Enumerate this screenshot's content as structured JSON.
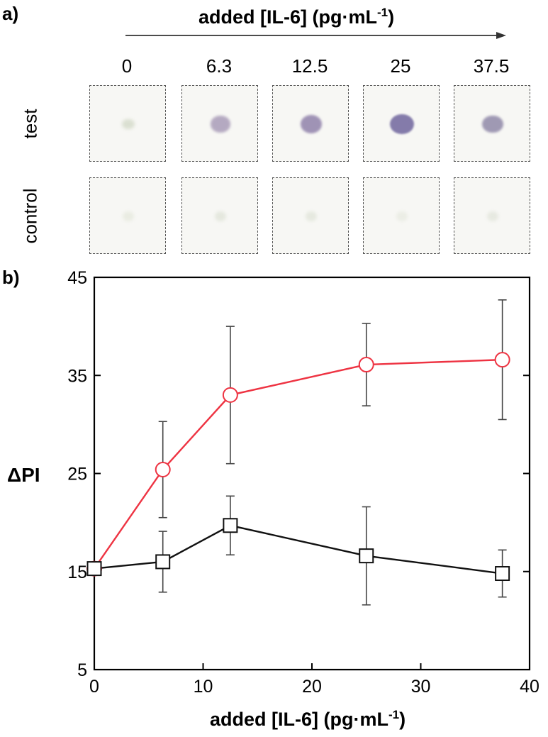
{
  "panel_a": {
    "label": "a)",
    "header": "added [IL-6] (pg·mL",
    "header_sup": "-1",
    "header_close": ")",
    "concentrations": [
      "0",
      "6.3",
      "12.5",
      "25",
      "37.5"
    ],
    "rows": [
      {
        "label": "test",
        "spots": [
          {
            "intensity": 0.15,
            "color": "#b9c4a8"
          },
          {
            "intensity": 0.6,
            "color": "#9e8fb0"
          },
          {
            "intensity": 0.75,
            "color": "#8f80aa"
          },
          {
            "intensity": 0.9,
            "color": "#7d74a6"
          },
          {
            "intensity": 0.7,
            "color": "#8a82a4"
          }
        ]
      },
      {
        "label": "control",
        "spots": [
          {
            "intensity": 0.08,
            "color": "#d6dcc8"
          },
          {
            "intensity": 0.12,
            "color": "#cdd4c2"
          },
          {
            "intensity": 0.12,
            "color": "#cfd6c4"
          },
          {
            "intensity": 0.06,
            "color": "#d9dece"
          },
          {
            "intensity": 0.1,
            "color": "#d0d6c6"
          }
        ]
      }
    ]
  },
  "panel_b": {
    "label": "b)"
  },
  "chart_data": {
    "type": "line",
    "title": "",
    "xlabel": "added [IL-6] (pg·mL",
    "xlabel_sup": "-1",
    "xlabel_close": ")",
    "ylabel": "ΔPI",
    "xlim": [
      0,
      40
    ],
    "ylim": [
      5,
      45
    ],
    "xticks": [
      0,
      10,
      20,
      30,
      40
    ],
    "yticks": [
      5,
      15,
      25,
      35,
      45
    ],
    "series": [
      {
        "marker": "circle",
        "color": "#ee3342",
        "x": [
          0,
          6.3,
          12.5,
          25,
          37.5
        ],
        "y": [
          15.3,
          25.4,
          33.0,
          36.1,
          36.6
        ],
        "err": [
          0,
          4.9,
          7.0,
          4.2,
          6.1
        ]
      },
      {
        "marker": "square",
        "color": "#111111",
        "x": [
          0,
          6.3,
          12.5,
          25,
          37.5
        ],
        "y": [
          15.3,
          16.0,
          19.7,
          16.6,
          14.8
        ],
        "err": [
          0,
          3.1,
          3.0,
          5.0,
          2.4
        ]
      }
    ]
  }
}
